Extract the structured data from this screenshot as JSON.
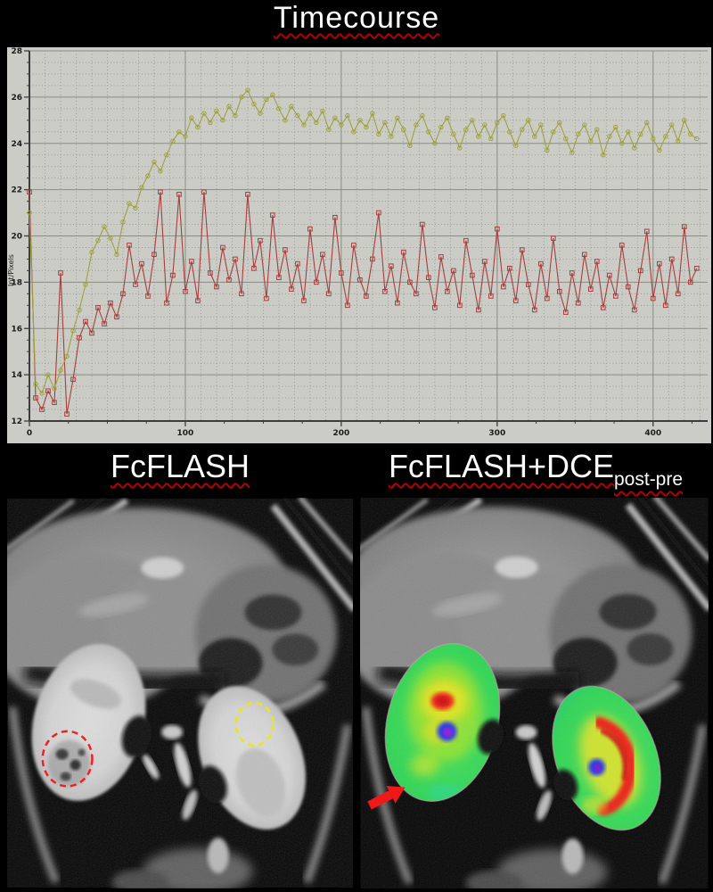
{
  "page_title": {
    "text": "Timecourse"
  },
  "underline_color": "#b40000",
  "chart_data": {
    "type": "line",
    "title": "Timecourse",
    "xlabel": "",
    "ylabel": "Int/Pixels",
    "xlim": [
      0,
      435
    ],
    "ylim": [
      12,
      28
    ],
    "x_ticks": [
      0,
      100,
      200,
      300,
      400
    ],
    "y_ticks": [
      12,
      14,
      16,
      18,
      20,
      22,
      24,
      26,
      28
    ],
    "x_minor_step": 10,
    "y_minor_step": 0.5,
    "grid": true,
    "legend": "none",
    "plot_bg": "#cbccc6",
    "x": [
      0,
      4,
      8,
      12,
      16,
      20,
      24,
      28,
      32,
      36,
      40,
      44,
      48,
      52,
      56,
      60,
      64,
      68,
      72,
      76,
      80,
      84,
      88,
      92,
      96,
      100,
      104,
      108,
      112,
      116,
      120,
      124,
      128,
      132,
      136,
      140,
      144,
      148,
      152,
      156,
      160,
      164,
      168,
      172,
      176,
      180,
      184,
      188,
      192,
      196,
      200,
      204,
      208,
      212,
      216,
      220,
      224,
      228,
      232,
      236,
      240,
      244,
      248,
      252,
      256,
      260,
      264,
      268,
      272,
      276,
      280,
      284,
      288,
      292,
      296,
      300,
      304,
      308,
      312,
      316,
      320,
      324,
      328,
      332,
      336,
      340,
      344,
      348,
      352,
      356,
      360,
      364,
      368,
      372,
      376,
      380,
      384,
      388,
      392,
      396,
      400,
      404,
      408,
      412,
      416,
      420,
      424,
      428
    ],
    "series": [
      {
        "name": "olive-series",
        "color": "#9fa23b",
        "marker": "circle",
        "values": [
          21.0,
          13.6,
          13.2,
          14.0,
          13.4,
          14.2,
          14.8,
          15.9,
          16.8,
          17.9,
          19.3,
          19.8,
          20.4,
          19.9,
          19.2,
          20.6,
          21.4,
          21.2,
          22.1,
          22.6,
          23.2,
          22.8,
          23.5,
          24.1,
          24.5,
          24.3,
          25.1,
          24.7,
          25.3,
          24.9,
          25.4,
          25.0,
          25.6,
          25.2,
          26.0,
          26.3,
          25.7,
          25.3,
          25.9,
          26.1,
          25.5,
          25.0,
          25.6,
          25.2,
          24.8,
          25.3,
          24.9,
          25.4,
          24.6,
          25.1,
          24.8,
          25.2,
          24.5,
          25.0,
          24.7,
          25.3,
          24.4,
          24.9,
          24.3,
          25.1,
          24.6,
          23.9,
          24.8,
          25.2,
          24.5,
          24.0,
          24.7,
          25.1,
          24.4,
          23.8,
          24.6,
          25.0,
          24.3,
          24.8,
          24.2,
          24.9,
          25.2,
          24.5,
          23.9,
          24.6,
          25.0,
          24.3,
          24.8,
          23.7,
          24.5,
          24.9,
          24.2,
          23.6,
          24.4,
          24.8,
          24.1,
          24.6,
          23.5,
          24.3,
          24.7,
          24.0,
          24.5,
          23.8,
          24.4,
          24.9,
          24.2,
          23.7,
          24.3,
          24.8,
          24.1,
          25.0,
          24.4,
          24.2
        ]
      },
      {
        "name": "dark-red-series",
        "color": "#a63e3e",
        "marker": "square",
        "values": [
          21.9,
          13.0,
          12.5,
          13.3,
          12.8,
          18.4,
          12.3,
          13.8,
          15.6,
          16.3,
          15.8,
          16.9,
          16.2,
          17.1,
          16.5,
          17.5,
          19.6,
          17.9,
          18.8,
          17.4,
          19.2,
          21.9,
          17.1,
          18.3,
          21.8,
          17.6,
          18.9,
          17.2,
          21.9,
          18.4,
          17.8,
          19.5,
          18.1,
          19.0,
          17.5,
          21.8,
          18.6,
          19.8,
          17.3,
          20.9,
          18.2,
          19.4,
          17.7,
          18.8,
          17.2,
          20.3,
          18.0,
          19.2,
          17.5,
          20.8,
          18.4,
          17.0,
          19.6,
          18.1,
          17.4,
          19.0,
          21.0,
          17.6,
          18.7,
          17.1,
          19.3,
          18.0,
          17.5,
          20.5,
          18.2,
          16.9,
          19.1,
          17.6,
          18.5,
          17.0,
          19.8,
          18.3,
          16.8,
          18.9,
          17.4,
          20.3,
          17.8,
          18.6,
          17.2,
          19.4,
          17.9,
          16.8,
          18.8,
          17.3,
          19.9,
          17.6,
          16.7,
          18.4,
          17.1,
          19.2,
          17.7,
          18.9,
          16.9,
          18.3,
          17.4,
          19.6,
          17.8,
          16.8,
          18.5,
          20.2,
          17.3,
          18.8,
          17.0,
          19.0,
          17.5,
          20.4,
          18.0,
          18.6
        ]
      }
    ]
  },
  "section_labels": {
    "left": "FcFLASH",
    "right_main": "FcFLASH+DCE",
    "right_sub": "post-pre"
  },
  "annotations": {
    "red_roi_color": "#f02020",
    "yellow_roi_color": "#e8e818",
    "arrow_color": "#f01818",
    "overlay_colormap": "jet"
  }
}
